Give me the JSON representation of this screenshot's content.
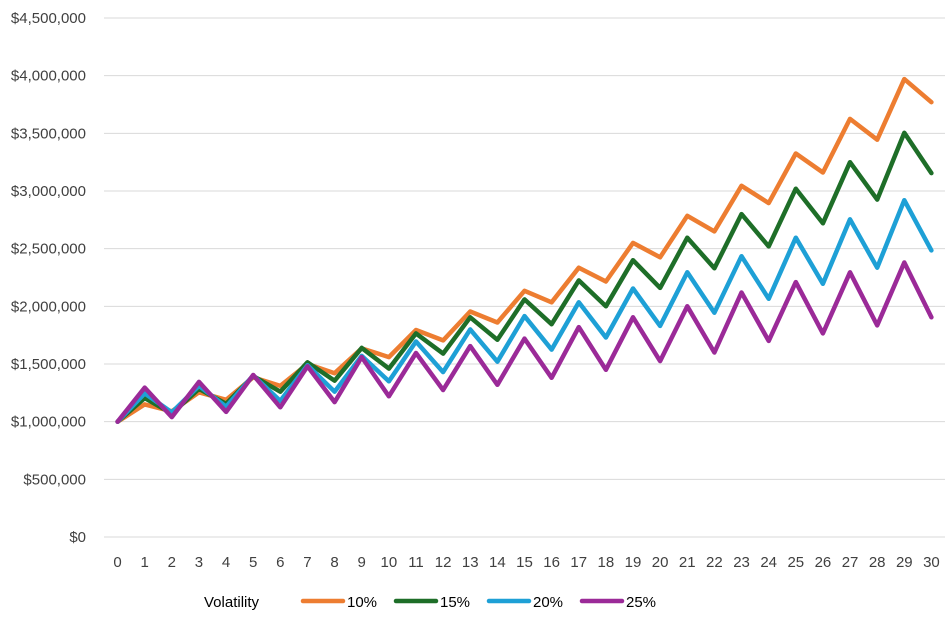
{
  "chart_data": {
    "type": "line",
    "title": "",
    "xlabel": "",
    "ylabel": "",
    "x": [
      0,
      1,
      2,
      3,
      4,
      5,
      6,
      7,
      8,
      9,
      10,
      11,
      12,
      13,
      14,
      15,
      16,
      17,
      18,
      19,
      20,
      21,
      22,
      23,
      24,
      25,
      26,
      27,
      28,
      29,
      30
    ],
    "ylim": [
      0,
      4500000
    ],
    "yticks": [
      0,
      500000,
      1000000,
      1500000,
      2000000,
      2500000,
      3000000,
      3500000,
      4000000,
      4500000
    ],
    "ytick_labels": [
      "$0",
      "$500,000",
      "$1,000,000",
      "$1,500,000",
      "$2,000,000",
      "$2,500,000",
      "$3,000,000",
      "$3,500,000",
      "$4,000,000",
      "$4,500,000"
    ],
    "grid": "horizontal",
    "legend": {
      "position": "bottom",
      "title": "Volatility"
    },
    "series": [
      {
        "name": "10%",
        "color": "#ED7D31",
        "values": [
          1000000,
          1150000,
          1090000,
          1255000,
          1190000,
          1385000,
          1310000,
          1500000,
          1420000,
          1635000,
          1560000,
          1795000,
          1705000,
          1955000,
          1860000,
          2135000,
          2035000,
          2335000,
          2215000,
          2550000,
          2425000,
          2785000,
          2650000,
          3045000,
          2895000,
          3325000,
          3160000,
          3625000,
          3445000,
          3970000,
          3770000
        ]
      },
      {
        "name": "15%",
        "color": "#1E6E28",
        "values": [
          1000000,
          1205000,
          1070000,
          1285000,
          1155000,
          1395000,
          1260000,
          1515000,
          1355000,
          1640000,
          1460000,
          1765000,
          1590000,
          1905000,
          1710000,
          2060000,
          1845000,
          2225000,
          2000000,
          2400000,
          2160000,
          2595000,
          2330000,
          2800000,
          2520000,
          3020000,
          2720000,
          3250000,
          2925000,
          3505000,
          3155000
        ]
      },
      {
        "name": "20%",
        "color": "#1EA0D6",
        "values": [
          1000000,
          1245000,
          1080000,
          1310000,
          1130000,
          1400000,
          1180000,
          1490000,
          1260000,
          1570000,
          1350000,
          1695000,
          1430000,
          1800000,
          1520000,
          1915000,
          1625000,
          2035000,
          1730000,
          2155000,
          1830000,
          2295000,
          1945000,
          2435000,
          2065000,
          2595000,
          2195000,
          2755000,
          2335000,
          2920000,
          2485000
        ]
      },
      {
        "name": "25%",
        "color": "#9B2A98",
        "values": [
          1000000,
          1295000,
          1040000,
          1345000,
          1085000,
          1405000,
          1125000,
          1480000,
          1170000,
          1560000,
          1220000,
          1595000,
          1275000,
          1655000,
          1320000,
          1720000,
          1380000,
          1820000,
          1450000,
          1905000,
          1525000,
          2000000,
          1600000,
          2120000,
          1700000,
          2210000,
          1765000,
          2295000,
          1835000,
          2380000,
          1905000
        ]
      }
    ]
  }
}
